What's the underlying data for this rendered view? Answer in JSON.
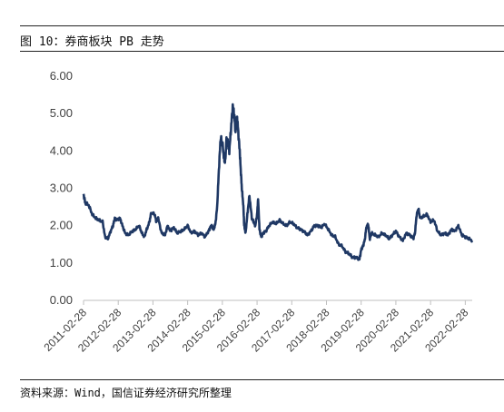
{
  "header": {
    "title": "图 10：券商板块 PB 走势"
  },
  "footer": {
    "source": "资料来源：Wind，国信证券经济研究所整理"
  },
  "chart_data": {
    "type": "line",
    "title": "",
    "xlabel": "",
    "ylabel": "",
    "ylim": [
      0,
      6
    ],
    "yticks": [
      "0.00",
      "1.00",
      "2.00",
      "3.00",
      "4.00",
      "5.00",
      "6.00"
    ],
    "xticks": [
      "2011-02-28",
      "2012-02-28",
      "2013-02-28",
      "2014-02-28",
      "2015-02-28",
      "2016-02-28",
      "2017-02-28",
      "2018-02-28",
      "2019-02-28",
      "2020-02-28",
      "2021-02-28",
      "2022-02-28"
    ],
    "grid": false,
    "legend": "none",
    "colors": {
      "line": "#1f3864",
      "axis": "#bfbfbf"
    },
    "series": [
      {
        "x": [
          2011.0,
          2011.05,
          2011.15,
          2011.25,
          2011.35,
          2011.45,
          2011.55,
          2011.62,
          2011.7,
          2011.78,
          2011.85,
          2011.9,
          2011.95,
          2012.05,
          2012.12,
          2012.2,
          2012.3,
          2012.4,
          2012.5,
          2012.6,
          2012.68,
          2012.75,
          2012.82,
          2012.9,
          2012.95,
          2013.05,
          2013.1,
          2013.15,
          2013.25,
          2013.35,
          2013.42,
          2013.5,
          2013.6,
          2013.7,
          2013.8,
          2013.9,
          2014.0,
          2014.1,
          2014.2,
          2014.3,
          2014.4,
          2014.5,
          2014.6,
          2014.65,
          2014.7,
          2014.75,
          2014.8,
          2014.85,
          2014.9,
          2014.95,
          2015.0,
          2015.05,
          2015.08,
          2015.12,
          2015.16,
          2015.2,
          2015.25,
          2015.3,
          2015.35,
          2015.38,
          2015.42,
          2015.45,
          2015.5,
          2015.53,
          2015.56,
          2015.6,
          2015.63,
          2015.67,
          2015.72,
          2015.78,
          2015.85,
          2015.9,
          2015.95,
          2016.0,
          2016.03,
          2016.07,
          2016.12,
          2016.18,
          2016.25,
          2016.35,
          2016.45,
          2016.55,
          2016.65,
          2016.75,
          2016.85,
          2016.95,
          2017.05,
          2017.15,
          2017.25,
          2017.35,
          2017.45,
          2017.55,
          2017.65,
          2017.75,
          2017.85,
          2017.95,
          2018.05,
          2018.15,
          2018.25,
          2018.35,
          2018.45,
          2018.55,
          2018.65,
          2018.75,
          2018.85,
          2018.95,
          2019.0,
          2019.05,
          2019.1,
          2019.15,
          2019.2,
          2019.25,
          2019.3,
          2019.4,
          2019.5,
          2019.6,
          2019.7,
          2019.8,
          2019.9,
          2020.0,
          2020.1,
          2020.2,
          2020.3,
          2020.4,
          2020.5,
          2020.55,
          2020.6,
          2020.65,
          2020.7,
          2020.8,
          2020.9,
          2021.0,
          2021.1,
          2021.2,
          2021.3,
          2021.4,
          2021.5,
          2021.6,
          2021.7,
          2021.8,
          2021.9,
          2022.0,
          2022.1,
          2022.2
        ],
        "y": [
          2.85,
          2.6,
          2.55,
          2.3,
          2.2,
          2.15,
          2.1,
          1.7,
          1.65,
          1.85,
          2.0,
          2.2,
          2.15,
          2.2,
          2.0,
          1.8,
          1.75,
          1.85,
          1.9,
          2.0,
          1.8,
          1.7,
          1.9,
          2.1,
          2.35,
          2.3,
          2.1,
          2.2,
          1.8,
          1.75,
          2.0,
          1.85,
          1.95,
          1.8,
          1.85,
          1.9,
          2.0,
          1.8,
          1.85,
          1.75,
          1.8,
          1.7,
          1.85,
          1.95,
          2.0,
          1.9,
          2.05,
          2.5,
          3.5,
          4.35,
          4.2,
          3.8,
          3.7,
          4.3,
          4.2,
          4.0,
          4.6,
          5.2,
          4.9,
          4.5,
          4.9,
          4.6,
          4.0,
          3.5,
          3.0,
          2.6,
          2.0,
          1.8,
          2.3,
          2.8,
          2.2,
          2.1,
          2.0,
          2.3,
          2.7,
          1.9,
          1.7,
          1.8,
          1.85,
          2.0,
          2.1,
          2.05,
          2.15,
          2.05,
          2.0,
          2.1,
          2.05,
          1.95,
          1.9,
          1.85,
          1.75,
          1.85,
          2.0,
          2.0,
          1.95,
          2.05,
          1.9,
          1.75,
          1.7,
          1.5,
          1.45,
          1.3,
          1.25,
          1.15,
          1.15,
          1.1,
          1.35,
          1.45,
          1.6,
          1.95,
          2.05,
          1.65,
          1.8,
          1.75,
          1.7,
          1.8,
          1.75,
          1.65,
          1.75,
          1.85,
          1.7,
          1.6,
          1.8,
          1.75,
          1.65,
          1.8,
          2.3,
          2.45,
          2.2,
          2.25,
          2.3,
          2.1,
          2.15,
          1.85,
          1.75,
          1.8,
          1.75,
          1.9,
          1.85,
          2.0,
          1.75,
          1.7,
          1.65,
          1.6
        ]
      }
    ]
  }
}
